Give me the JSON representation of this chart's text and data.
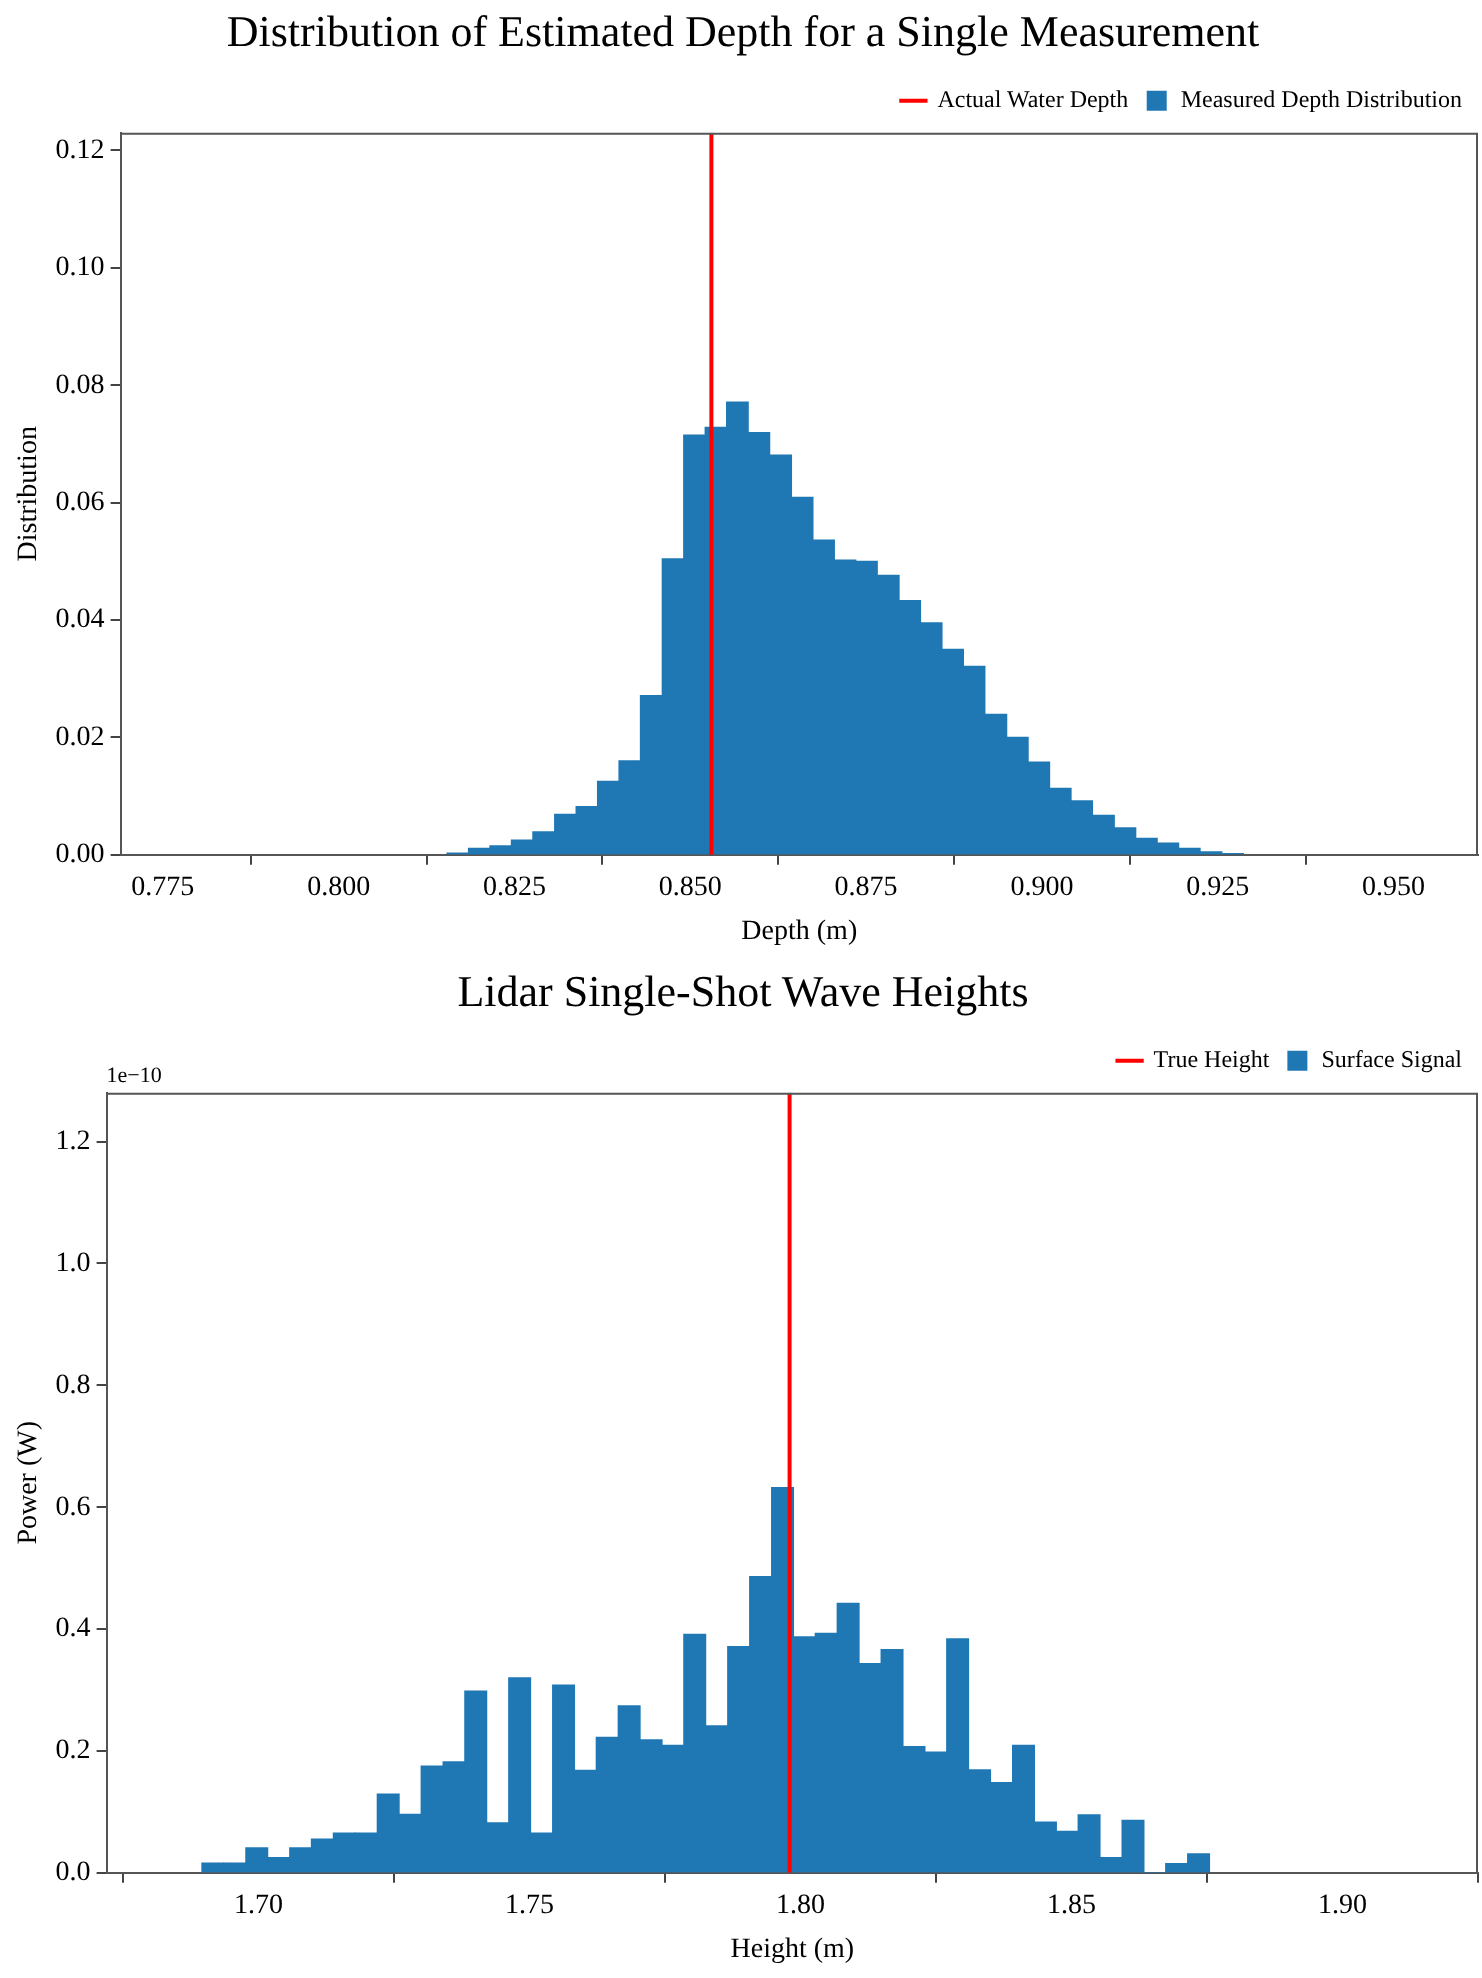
{
  "chart_data": [
    {
      "type": "histogram",
      "title": "Distribution of Estimated Depth for a Single Measurement",
      "xlabel": "Depth (m)",
      "ylabel": "Distribution",
      "bins": [
        0.8154,
        0.8185,
        0.8215,
        0.8246,
        0.8276,
        0.8307,
        0.8338,
        0.8368,
        0.8399,
        0.8429,
        0.846,
        0.8491,
        0.8521,
        0.8552,
        0.8582,
        0.8613,
        0.8644,
        0.8674,
        0.8705,
        0.8735,
        0.8766,
        0.8797,
        0.8827,
        0.8858,
        0.8888,
        0.8919,
        0.895,
        0.898,
        0.9011,
        0.9041,
        0.9072,
        0.9103,
        0.9133,
        0.9164,
        0.9194,
        0.9225,
        0.9256,
        0.9286
      ],
      "series": [
        {
          "name": "Measured Depth Distribution",
          "color": "#1f77b4",
          "values": [
            0.0003,
            0.0011,
            0.0015,
            0.0025,
            0.0039,
            0.0069,
            0.0082,
            0.0125,
            0.016,
            0.0271,
            0.0504,
            0.0715,
            0.0728,
            0.0771,
            0.0719,
            0.0681,
            0.0609,
            0.0536,
            0.0502,
            0.05,
            0.0476,
            0.0433,
            0.0395,
            0.035,
            0.0321,
            0.0239,
            0.02,
            0.0158,
            0.0113,
            0.0092,
            0.0067,
            0.0046,
            0.0028,
            0.002,
            0.0011,
            0.0005,
            0.0002
          ]
        }
      ],
      "ref_lines": [
        {
          "axis": "x",
          "value": 0.853,
          "label": "Actual Water Depth",
          "color": "#ff0000"
        }
      ],
      "xlim": [
        0.769,
        0.962
      ],
      "xticks": [
        {
          "value": 0.775,
          "label": "0.775"
        },
        {
          "value": 0.8,
          "label": "0.800"
        },
        {
          "value": 0.825,
          "label": "0.825"
        },
        {
          "value": 0.85,
          "label": "0.850"
        },
        {
          "value": 0.875,
          "label": "0.875"
        },
        {
          "value": 0.9,
          "label": "0.900"
        },
        {
          "value": 0.925,
          "label": "0.925"
        },
        {
          "value": 0.95,
          "label": "0.950"
        }
      ],
      "ylim": [
        0,
        0.123
      ],
      "yticks": [
        {
          "value": 0,
          "label": "0.00"
        },
        {
          "value": 0.02,
          "label": "0.02"
        },
        {
          "value": 0.04,
          "label": "0.04"
        },
        {
          "value": 0.06,
          "label": "0.06"
        },
        {
          "value": 0.08,
          "label": "0.08"
        },
        {
          "value": 0.1,
          "label": "0.10"
        },
        {
          "value": 0.12,
          "label": "0.12"
        }
      ],
      "grid": false,
      "legend": "top right"
    },
    {
      "type": "histogram",
      "title": "Lidar Single-Shot Wave Heights",
      "xlabel": "Height (m)",
      "ylabel": "Power (W)",
      "annotations": [
        "1e−10"
      ],
      "bins": [
        1.6896,
        1.6936,
        1.6977,
        1.7017,
        1.7058,
        1.7098,
        1.7138,
        1.7179,
        1.7219,
        1.726,
        1.73,
        1.7341,
        1.7381,
        1.7421,
        1.7462,
        1.7502,
        1.7543,
        1.7583,
        1.7623,
        1.7664,
        1.7704,
        1.7745,
        1.7785,
        1.7825,
        1.7866,
        1.7906,
        1.7947,
        1.7987,
        1.8027,
        1.8068,
        1.8108,
        1.8149,
        1.8189,
        1.823,
        1.827,
        1.831,
        1.8351,
        1.8391,
        1.8432,
        1.8472,
        1.8512,
        1.8553,
        1.8593,
        1.8634,
        1.8674,
        1.8714,
        1.8755
      ],
      "series": [
        {
          "name": "Surface Signal",
          "color": "#1f77b4",
          "values": [
            0.016,
            0.016,
            0.041,
            0.025,
            0.041,
            0.055,
            0.065,
            0.065,
            0.129,
            0.096,
            0.175,
            0.182,
            0.298,
            0.082,
            0.32,
            0.065,
            0.308,
            0.168,
            0.222,
            0.274,
            0.218,
            0.209,
            0.391,
            0.241,
            0.371,
            0.486,
            0.632,
            0.387,
            0.393,
            0.442,
            0.343,
            0.366,
            0.207,
            0.198,
            0.384,
            0.169,
            0.148,
            0.209,
            0.083,
            0.068,
            0.095,
            0.025,
            0.086,
            0,
            0.015,
            0.031
          ]
        }
      ],
      "ref_lines": [
        {
          "axis": "x",
          "value": 1.798,
          "label": "True Height",
          "color": "#ff0000"
        }
      ],
      "xlim": [
        1.672,
        1.925
      ],
      "xticks": [
        {
          "value": 1.7,
          "label": "1.70"
        },
        {
          "value": 1.75,
          "label": "1.75"
        },
        {
          "value": 1.8,
          "label": "1.80"
        },
        {
          "value": 1.85,
          "label": "1.85"
        },
        {
          "value": 1.9,
          "label": "1.90"
        }
      ],
      "ylim": [
        0,
        1.28
      ],
      "yticks": [
        {
          "value": 0,
          "label": "0.0"
        },
        {
          "value": 0.2,
          "label": "0.2"
        },
        {
          "value": 0.4,
          "label": "0.4"
        },
        {
          "value": 0.6,
          "label": "0.6"
        },
        {
          "value": 0.8,
          "label": "0.8"
        },
        {
          "value": 1,
          "label": "1.0"
        },
        {
          "value": 1.2,
          "label": "1.2"
        }
      ],
      "grid": false,
      "legend": "top right"
    }
  ]
}
